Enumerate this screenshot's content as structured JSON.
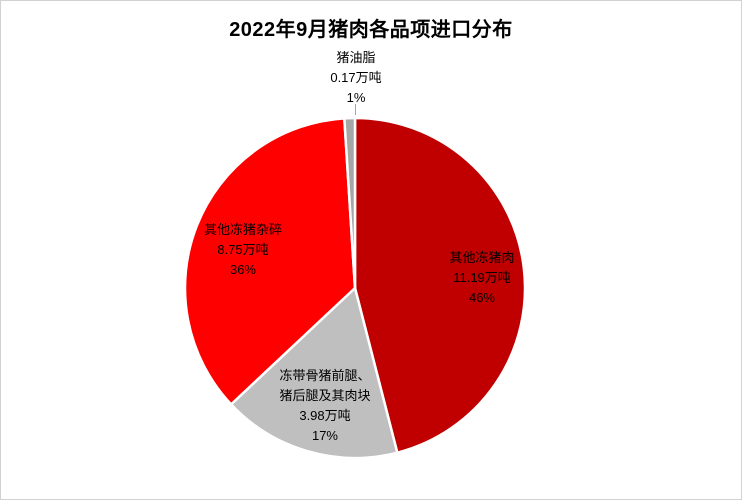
{
  "title": "2022年9月猪肉各品项进口分布",
  "chart_data": {
    "type": "pie",
    "title": "2022年9月猪肉各品项进口分布",
    "unit": "万吨",
    "start_angle_deg": 0,
    "direction": "clockwise",
    "legend": "none",
    "slices": [
      {
        "name": "其他冻猪肉",
        "value": 11.19,
        "percent": 46,
        "color": "#c00000",
        "label_position": "inside",
        "label_lines": [
          "其他冻猪肉",
          "11.19万吨",
          "46%"
        ]
      },
      {
        "name": "冻带骨猪前腿、猪后腿及其肉块",
        "value": 3.98,
        "percent": 17,
        "color": "#bfbfbf",
        "label_position": "inside",
        "label_lines": [
          "冻带骨猪前腿、",
          "猪后腿及其肉块",
          "3.98万吨",
          "17%"
        ]
      },
      {
        "name": "其他冻猪杂碎",
        "value": 8.75,
        "percent": 36,
        "color": "#ff0000",
        "label_position": "inside",
        "label_lines": [
          "其他冻猪杂碎",
          "8.75万吨",
          "36%"
        ]
      },
      {
        "name": "猪油脂",
        "value": 0.17,
        "percent": 1,
        "color": "#a6a6a6",
        "label_position": "outside-top",
        "label_lines": [
          "猪油脂",
          "0.17万吨",
          "1%"
        ]
      }
    ]
  }
}
